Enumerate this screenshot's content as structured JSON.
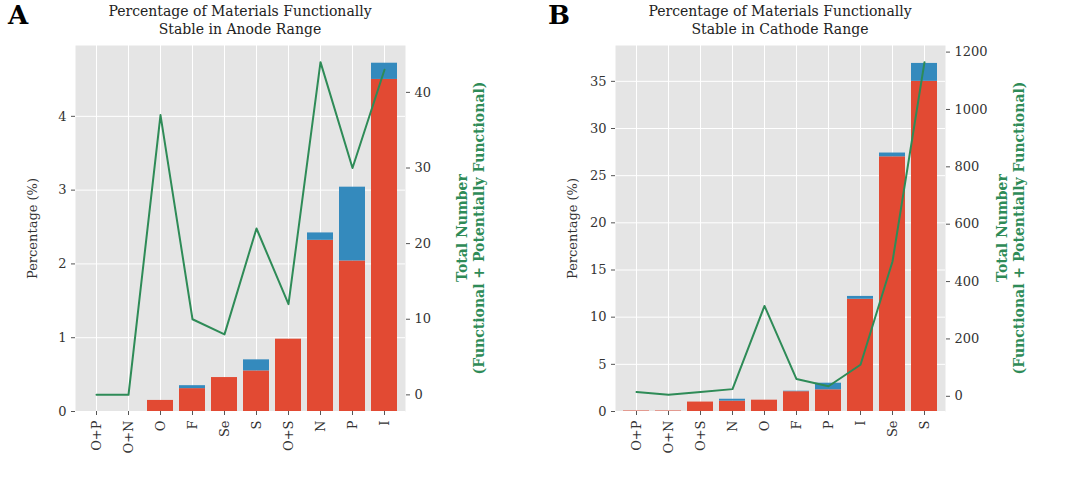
{
  "chart_data": [
    {
      "type": "bar",
      "panel_label": "A",
      "title": "Percentage of Materials Functionally\nStable in Anode Range",
      "y_label": "Percentage (%)",
      "y2_label": "Total Number\n(Functional + Potentially Functional)",
      "categories": [
        "O+P",
        "O+N",
        "O",
        "F",
        "Se",
        "S",
        "O+S",
        "N",
        "P",
        "I"
      ],
      "stacked": true,
      "grid": true,
      "ylim": [
        0,
        4.96
      ],
      "yticks": [
        0,
        1,
        2,
        3,
        4
      ],
      "y2lim": [
        -2.2,
        46.2
      ],
      "y2ticks": [
        0,
        10,
        20,
        30,
        40
      ],
      "series": [
        {
          "type": "bar",
          "color": "#E24A33",
          "values": [
            0,
            0,
            0.15,
            0.31,
            0.46,
            0.55,
            0.98,
            2.32,
            2.04,
            4.5
          ]
        },
        {
          "type": "bar",
          "color": "#348ABD",
          "values": [
            0,
            0,
            0,
            0.04,
            0,
            0.15,
            0,
            0.1,
            1.0,
            0.22
          ]
        },
        {
          "type": "line",
          "axis": "y2",
          "color": "#2E8B57",
          "values": [
            0,
            0,
            37,
            10,
            8,
            22,
            12,
            44,
            30,
            43
          ]
        }
      ]
    },
    {
      "type": "bar",
      "panel_label": "B",
      "title": "Percentage of Materials Functionally\nStable in Cathode Range",
      "y_label": "Percentage (%)",
      "y2_label": "Total Number\n(Functional + Potentially Functional)",
      "categories": [
        "O+P",
        "O+N",
        "O+S",
        "N",
        "O",
        "F",
        "P",
        "I",
        "Se",
        "S"
      ],
      "stacked": true,
      "grid": true,
      "ylim": [
        0,
        38.8
      ],
      "yticks": [
        0,
        5,
        10,
        15,
        20,
        25,
        30,
        35
      ],
      "y2lim": [
        -53,
        1223
      ],
      "y2ticks": [
        0,
        200,
        400,
        600,
        800,
        1000,
        1200
      ],
      "series": [
        {
          "type": "bar",
          "color": "#E24A33",
          "values": [
            0.05,
            0.05,
            1.0,
            1.1,
            1.2,
            2.1,
            2.3,
            11.9,
            27.0,
            35.0
          ]
        },
        {
          "type": "bar",
          "color": "#348ABD",
          "values": [
            0,
            0,
            0,
            0.2,
            0,
            0.05,
            0.7,
            0.3,
            0.4,
            1.9
          ]
        },
        {
          "type": "line",
          "axis": "y2",
          "color": "#2E8B57",
          "values": [
            15,
            5,
            15,
            25,
            315,
            60,
            35,
            110,
            470,
            1165
          ]
        }
      ]
    }
  ]
}
